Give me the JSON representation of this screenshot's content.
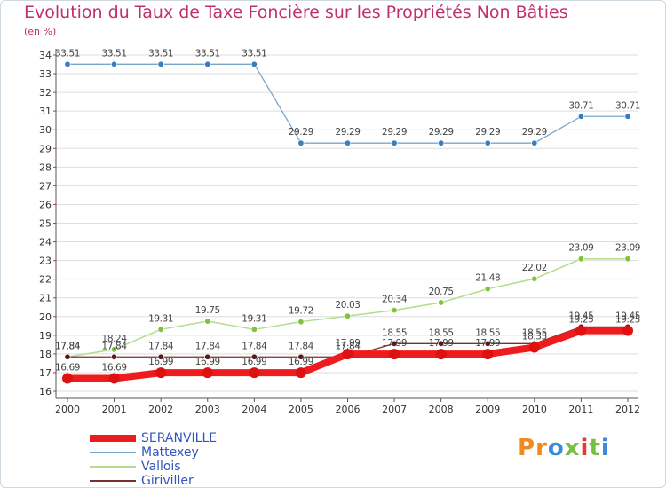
{
  "header": {
    "title": "Evolution du Taux de Taxe Foncière sur les Propriétés Non Bâties",
    "unit": "(en %)"
  },
  "logo": {
    "text": "Proxiti",
    "colors": [
      "#f08a1c",
      "#3a8ad8",
      "#74c043",
      "#e63a2a"
    ]
  },
  "colors": {
    "title": "#c0306a",
    "legend_text": "#3355bb",
    "axis": "#555555",
    "grid": "#dddddd"
  },
  "chart_data": {
    "type": "line",
    "title": "Evolution du Taux de Taxe Foncière sur les Propriétés Non Bâties",
    "ylabel": "(en %)",
    "xlabel": "",
    "categories": [
      "2000",
      "2001",
      "2002",
      "2003",
      "2004",
      "2005",
      "2006",
      "2007",
      "2008",
      "2009",
      "2010",
      "2011",
      "2012"
    ],
    "ylim": [
      16,
      34
    ],
    "yticks": [
      16,
      17,
      18,
      19,
      20,
      21,
      22,
      23,
      24,
      25,
      26,
      27,
      28,
      29,
      30,
      31,
      32,
      33,
      34
    ],
    "grid": "horizontal",
    "legend_position": "bottom-left",
    "series": [
      {
        "name": "SERANVILLE",
        "color": "#ee1c1c",
        "line_width": 8,
        "marker_color": "#dd1111",
        "values": [
          16.69,
          16.69,
          16.99,
          16.99,
          16.99,
          16.99,
          17.99,
          17.99,
          17.99,
          17.99,
          18.35,
          19.25,
          19.25
        ],
        "labels": [
          "16.69",
          "16.69",
          "16.99",
          "16.99",
          "16.99",
          "16.99",
          "17.99",
          "17.99",
          "17.99",
          "17.99",
          "18.35",
          "19.25",
          "19.25"
        ]
      },
      {
        "name": "Mattexey",
        "color": "#7aa6cc",
        "line_width": 1.3,
        "marker_color": "#3a7dbf",
        "values": [
          33.51,
          33.51,
          33.51,
          33.51,
          33.51,
          29.29,
          29.29,
          29.29,
          29.29,
          29.29,
          29.29,
          30.71,
          30.71
        ],
        "labels": [
          "33.51",
          "33.51",
          "33.51",
          "33.51",
          "33.51",
          "29.29",
          "29.29",
          "29.29",
          "29.29",
          "29.29",
          "29.29",
          "30.71",
          "30.71"
        ]
      },
      {
        "name": "Vallois",
        "color": "#b3dd8c",
        "line_width": 1.5,
        "marker_color": "#7cc43c",
        "values": [
          17.84,
          18.24,
          19.31,
          19.75,
          19.31,
          19.72,
          20.03,
          20.34,
          20.75,
          21.48,
          22.02,
          23.09,
          23.09
        ],
        "labels": [
          "17.84",
          "18.24",
          "19.31",
          "19.75",
          "19.31",
          "19.72",
          "20.03",
          "20.34",
          "20.75",
          "21.48",
          "22.02",
          "23.09",
          "23.09"
        ]
      },
      {
        "name": "Giriviller",
        "color": "#7a3030",
        "line_width": 1.3,
        "marker_color": "#5a1818",
        "values": [
          17.84,
          17.84,
          17.84,
          17.84,
          17.84,
          17.84,
          17.84,
          18.55,
          18.55,
          18.55,
          18.55,
          19.45,
          19.45
        ],
        "labels": [
          "17.84",
          "17.84",
          "17.84",
          "17.84",
          "17.84",
          "17.84",
          "17.84",
          "18.55",
          "18.55",
          "18.55",
          "18.55",
          "19.45",
          "19.45"
        ]
      }
    ]
  }
}
